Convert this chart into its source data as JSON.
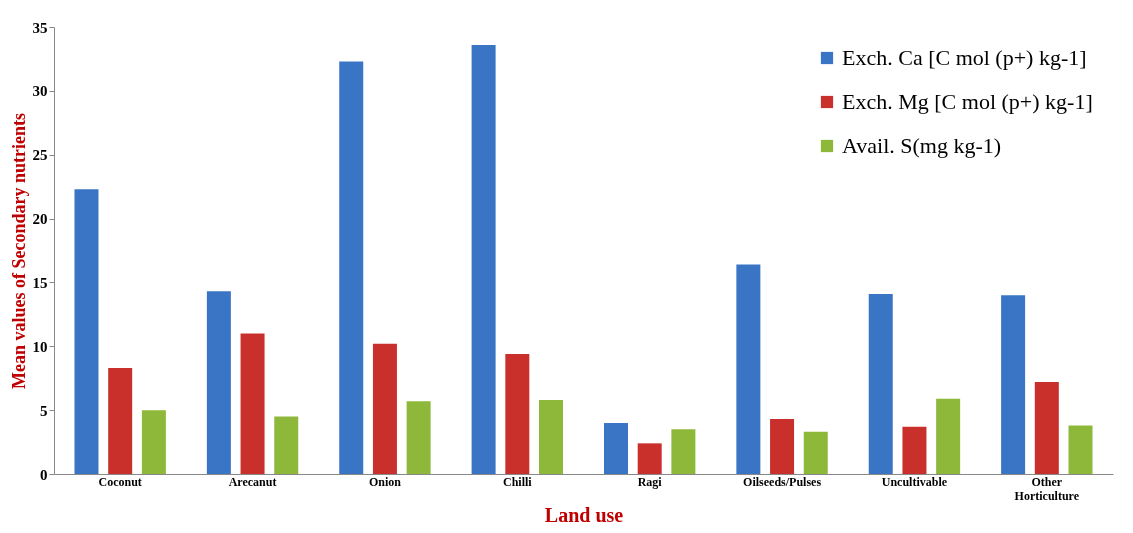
{
  "chart_data": {
    "type": "bar",
    "xlabel": "Land use",
    "ylabel": "Mean values of Secondary nutrients",
    "categories": [
      "Coconut",
      "Arecanut",
      "Onion",
      "Chilli",
      "Ragi",
      "Oilseeds/Pulses",
      "Uncultivable",
      "Other Horticulture"
    ],
    "series": [
      {
        "name": "Exch. Ca [C mol (p+) kg-1]",
        "color": "#3a74c4",
        "values": [
          22.3,
          14.3,
          32.3,
          33.6,
          4.0,
          16.4,
          14.1,
          14.0
        ]
      },
      {
        "name": "Exch. Mg [C mol (p+) kg-1]",
        "color": "#c9302c",
        "values": [
          8.3,
          11.0,
          10.2,
          9.4,
          2.4,
          4.3,
          3.7,
          7.2
        ]
      },
      {
        "name": "Avail. S(mg kg-1)",
        "color": "#8db83a",
        "values": [
          5.0,
          4.5,
          5.7,
          5.8,
          3.5,
          3.3,
          5.9,
          3.8
        ]
      }
    ],
    "ylim": [
      0,
      35
    ],
    "yticks": [
      0,
      5,
      10,
      15,
      20,
      25,
      30,
      35
    ],
    "grid": false,
    "legend": "top right"
  }
}
